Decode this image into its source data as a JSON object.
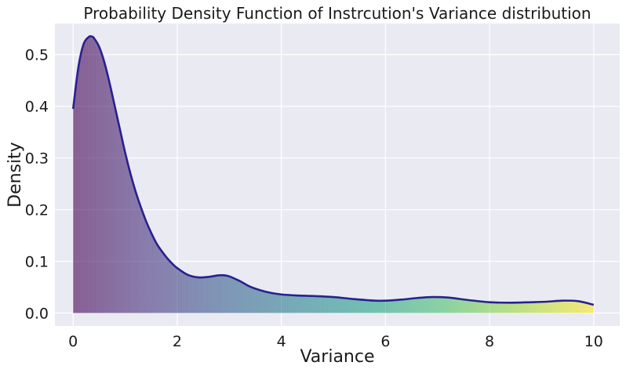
{
  "chart_data": {
    "type": "area",
    "title": "Probability Density Function of Instrcution's Variance distribution",
    "xlabel": "Variance",
    "ylabel": "Density",
    "xlim": [
      -0.35,
      10.5
    ],
    "ylim": [
      -0.025,
      0.56
    ],
    "xticks": [
      0,
      2,
      4,
      6,
      8,
      10
    ],
    "xtick_labels": [
      "0",
      "2",
      "4",
      "6",
      "8",
      "10"
    ],
    "yticks": [
      0.0,
      0.1,
      0.2,
      0.3,
      0.4,
      0.5
    ],
    "ytick_labels": [
      "0.0",
      "0.1",
      "0.2",
      "0.3",
      "0.4",
      "0.5"
    ],
    "grid": true,
    "background": "#eaeaf2",
    "grid_color": "#ffffff",
    "line_color": "#28218f",
    "fill_colormap": "viridis",
    "series": [
      {
        "x": [
          0.0,
          0.1,
          0.2,
          0.3,
          0.35,
          0.4,
          0.5,
          0.6,
          0.7,
          0.8,
          0.9,
          1.0,
          1.1,
          1.2,
          1.3,
          1.4,
          1.5,
          1.6,
          1.7,
          1.8,
          1.9,
          2.0,
          2.2,
          2.4,
          2.6,
          2.8,
          2.9,
          3.0,
          3.2,
          3.4,
          3.6,
          3.8,
          4.0,
          4.3,
          4.6,
          5.0,
          5.4,
          5.8,
          6.0,
          6.3,
          6.6,
          6.9,
          7.2,
          7.6,
          8.0,
          8.4,
          8.8,
          9.1,
          9.4,
          9.7,
          10.0
        ],
        "y": [
          0.395,
          0.475,
          0.52,
          0.534,
          0.535,
          0.532,
          0.515,
          0.485,
          0.445,
          0.4,
          0.355,
          0.31,
          0.27,
          0.235,
          0.205,
          0.178,
          0.155,
          0.135,
          0.12,
          0.107,
          0.096,
          0.087,
          0.074,
          0.069,
          0.07,
          0.073,
          0.073,
          0.071,
          0.062,
          0.051,
          0.044,
          0.039,
          0.036,
          0.034,
          0.033,
          0.031,
          0.027,
          0.024,
          0.024,
          0.026,
          0.029,
          0.031,
          0.03,
          0.025,
          0.021,
          0.02,
          0.021,
          0.022,
          0.024,
          0.023,
          0.016
        ]
      }
    ]
  }
}
